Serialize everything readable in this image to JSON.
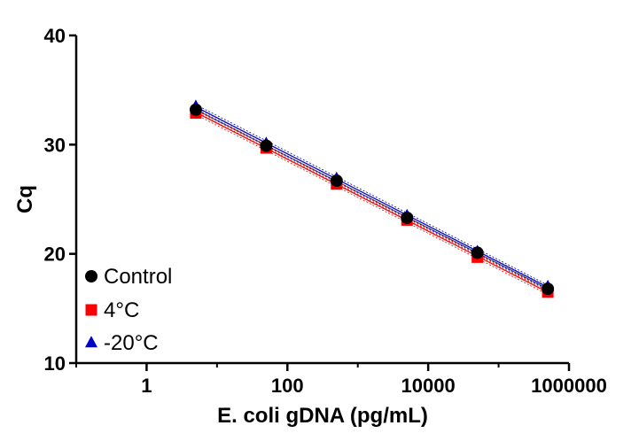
{
  "chart_data": {
    "type": "scatter",
    "title": "",
    "xlabel": "E. coli gDNA (pg/mL)",
    "ylabel": "Cq",
    "xscale": "log",
    "xlim": [
      0.1,
      1000000
    ],
    "ylim": [
      10,
      40
    ],
    "xticks": [
      1,
      100,
      10000,
      1000000
    ],
    "xtick_labels": [
      "1",
      "100",
      "10000",
      "1000000"
    ],
    "yticks": [
      10,
      20,
      30,
      40
    ],
    "ytick_labels": [
      "10",
      "20",
      "30",
      "40"
    ],
    "x": [
      5,
      50,
      500,
      5000,
      50000,
      500000
    ],
    "series": [
      {
        "name": "Control",
        "marker": "circle",
        "color": "#000000",
        "line_color": "#555555",
        "values": [
          33.2,
          29.9,
          26.7,
          23.3,
          20.1,
          16.8
        ]
      },
      {
        "name": "4°C",
        "marker": "square",
        "color": "#ff0000",
        "line_color": "#ff0000",
        "values": [
          32.9,
          29.7,
          26.4,
          23.1,
          19.7,
          16.5
        ]
      },
      {
        "name": "-20°C",
        "marker": "triangle",
        "color": "#0000cc",
        "line_color": "#0000cc",
        "values": [
          33.5,
          30.1,
          26.9,
          23.5,
          20.2,
          17.0
        ]
      }
    ],
    "grid": false,
    "legend_position": "bottom-left"
  }
}
